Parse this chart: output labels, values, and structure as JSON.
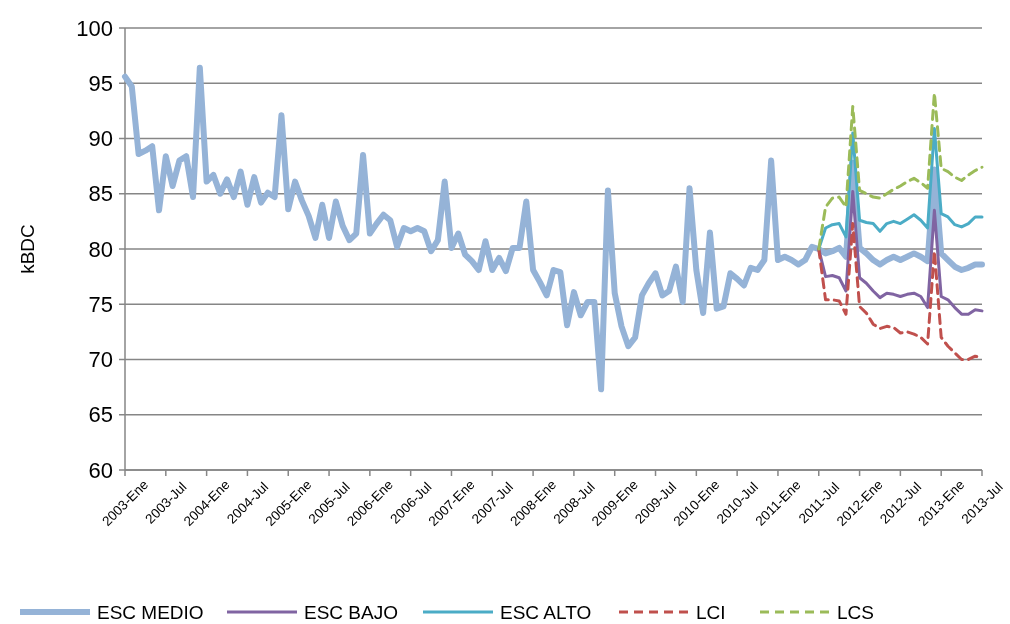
{
  "chart_data": {
    "type": "line",
    "ylabel": "kBDC",
    "categories": [
      "2003-Ene",
      null,
      null,
      null,
      null,
      null,
      "2003-Jul",
      null,
      null,
      null,
      null,
      null,
      "2004-Ene",
      null,
      null,
      null,
      null,
      null,
      "2004-Jul",
      null,
      null,
      null,
      null,
      null,
      "2005-Ene",
      null,
      null,
      null,
      null,
      null,
      "2005-Jul",
      null,
      null,
      null,
      null,
      null,
      "2006-Ene",
      null,
      null,
      null,
      null,
      null,
      "2006-Jul",
      null,
      null,
      null,
      null,
      null,
      "2007-Ene",
      null,
      null,
      null,
      null,
      null,
      "2007-Jul",
      null,
      null,
      null,
      null,
      null,
      "2008-Ene",
      null,
      null,
      null,
      null,
      null,
      "2008-Jul",
      null,
      null,
      null,
      null,
      null,
      "2009-Ene",
      null,
      null,
      null,
      null,
      null,
      "2009-Jul",
      null,
      null,
      null,
      null,
      null,
      "2010-Ene",
      null,
      null,
      null,
      null,
      null,
      "2010-Jul",
      null,
      null,
      null,
      null,
      null,
      "2011-Ene",
      null,
      null,
      null,
      null,
      null,
      "2011-Jul",
      null,
      null,
      null,
      null,
      null,
      "2012-Ene",
      null,
      null,
      null,
      null,
      null,
      "2012-Jul",
      null,
      null,
      null,
      null,
      null,
      "2013-Ene",
      null,
      null,
      null,
      null,
      null,
      "2013-Jul"
    ],
    "ylim": [
      60,
      100
    ],
    "yticks": [
      60,
      65,
      70,
      75,
      80,
      85,
      90,
      95,
      100
    ],
    "grid": "y",
    "legend": "bottom",
    "marker": "none",
    "series": [
      {
        "name": "ESC MEDIO",
        "color": "#95b3d7",
        "line_style": "solid",
        "values": [
          95.6,
          94.7,
          88.6,
          88.9,
          89.3,
          83.5,
          88.4,
          85.7,
          88.0,
          88.4,
          84.7,
          96.4,
          86.1,
          86.7,
          85.0,
          86.3,
          84.7,
          87.0,
          84.0,
          86.5,
          84.2,
          85.1,
          84.7,
          92.1,
          83.6,
          86.1,
          84.4,
          83.0,
          81.0,
          84.0,
          81.0,
          84.3,
          82.1,
          80.8,
          81.4,
          88.5,
          81.4,
          82.3,
          83.1,
          82.6,
          80.2,
          81.9,
          81.6,
          81.9,
          81.6,
          79.8,
          80.8,
          86.1,
          80.1,
          81.4,
          79.5,
          78.9,
          78.1,
          80.7,
          78.1,
          79.2,
          78.0,
          80.1,
          80.1,
          84.3,
          78.1,
          77.0,
          75.8,
          78.1,
          77.9,
          73.1,
          76.1,
          74.0,
          75.2,
          75.2,
          67.3,
          85.3,
          76.0,
          73.0,
          71.2,
          72.0,
          75.8,
          76.9,
          77.8,
          75.8,
          76.2,
          78.4,
          75.2,
          85.5,
          78.1,
          74.2,
          81.5,
          74.6,
          74.8,
          77.8,
          77.3,
          76.7,
          78.3,
          78.1,
          79.0,
          88.0,
          79.0,
          79.3,
          79.0,
          78.6,
          79.0,
          80.2,
          80.0,
          79.6,
          79.8,
          80.1,
          79.3,
          87.8,
          80.1,
          79.6,
          79.0,
          78.6,
          79.0,
          79.3,
          79.0,
          79.3,
          79.6,
          79.3,
          78.9,
          87.2,
          79.6,
          79.0,
          78.4,
          78.1,
          78.3,
          78.6,
          78.6
        ]
      },
      {
        "name": "ESC BAJO",
        "color": "#8064a2",
        "line_style": "solid",
        "values": [
          null,
          null,
          null,
          null,
          null,
          null,
          null,
          null,
          null,
          null,
          null,
          null,
          null,
          null,
          null,
          null,
          null,
          null,
          null,
          null,
          null,
          null,
          null,
          null,
          null,
          null,
          null,
          null,
          null,
          null,
          null,
          null,
          null,
          null,
          null,
          null,
          null,
          null,
          null,
          null,
          null,
          null,
          null,
          null,
          null,
          null,
          null,
          null,
          null,
          null,
          null,
          null,
          null,
          null,
          null,
          null,
          null,
          null,
          null,
          null,
          null,
          null,
          null,
          null,
          null,
          null,
          null,
          null,
          null,
          null,
          null,
          null,
          null,
          null,
          null,
          null,
          null,
          null,
          null,
          null,
          null,
          null,
          null,
          null,
          null,
          null,
          null,
          null,
          null,
          null,
          null,
          null,
          null,
          null,
          null,
          null,
          null,
          null,
          null,
          null,
          null,
          null,
          80.0,
          77.5,
          77.6,
          77.4,
          76.2,
          85.2,
          77.4,
          76.9,
          76.2,
          75.6,
          76.0,
          75.9,
          75.7,
          75.9,
          76.0,
          75.7,
          74.7,
          83.5,
          75.7,
          75.4,
          74.7,
          74.1,
          74.1,
          74.5,
          74.4
        ]
      },
      {
        "name": "ESC ALTO",
        "color": "#4bacc6",
        "line_style": "solid",
        "values": [
          null,
          null,
          null,
          null,
          null,
          null,
          null,
          null,
          null,
          null,
          null,
          null,
          null,
          null,
          null,
          null,
          null,
          null,
          null,
          null,
          null,
          null,
          null,
          null,
          null,
          null,
          null,
          null,
          null,
          null,
          null,
          null,
          null,
          null,
          null,
          null,
          null,
          null,
          null,
          null,
          null,
          null,
          null,
          null,
          null,
          null,
          null,
          null,
          null,
          null,
          null,
          null,
          null,
          null,
          null,
          null,
          null,
          null,
          null,
          null,
          null,
          null,
          null,
          null,
          null,
          null,
          null,
          null,
          null,
          null,
          null,
          null,
          null,
          null,
          null,
          null,
          null,
          null,
          null,
          null,
          null,
          null,
          null,
          null,
          null,
          null,
          null,
          null,
          null,
          null,
          null,
          null,
          null,
          null,
          null,
          null,
          null,
          null,
          null,
          null,
          null,
          null,
          80.0,
          81.9,
          82.2,
          82.3,
          81.1,
          90.5,
          82.6,
          82.4,
          82.3,
          81.6,
          82.3,
          82.5,
          82.3,
          82.7,
          83.1,
          82.6,
          81.9,
          90.9,
          83.2,
          82.9,
          82.2,
          82.0,
          82.3,
          82.9,
          82.9
        ]
      },
      {
        "name": "LCI",
        "color": "#c0504d",
        "line_style": "dashed",
        "values": [
          null,
          null,
          null,
          null,
          null,
          null,
          null,
          null,
          null,
          null,
          null,
          null,
          null,
          null,
          null,
          null,
          null,
          null,
          null,
          null,
          null,
          null,
          null,
          null,
          null,
          null,
          null,
          null,
          null,
          null,
          null,
          null,
          null,
          null,
          null,
          null,
          null,
          null,
          null,
          null,
          null,
          null,
          null,
          null,
          null,
          null,
          null,
          null,
          null,
          null,
          null,
          null,
          null,
          null,
          null,
          null,
          null,
          null,
          null,
          null,
          null,
          null,
          null,
          null,
          null,
          null,
          null,
          null,
          null,
          null,
          null,
          null,
          null,
          null,
          null,
          null,
          null,
          null,
          null,
          null,
          null,
          null,
          null,
          null,
          null,
          null,
          null,
          null,
          null,
          null,
          null,
          null,
          null,
          null,
          null,
          null,
          null,
          null,
          null,
          null,
          null,
          null,
          80.0,
          75.4,
          75.4,
          75.3,
          74.1,
          82.3,
          74.8,
          74.2,
          73.2,
          72.8,
          73.0,
          72.9,
          72.4,
          72.5,
          72.3,
          72.0,
          71.4,
          79.8,
          72.0,
          71.2,
          70.6,
          70.0,
          70.0,
          70.3,
          70.2
        ]
      },
      {
        "name": "LCS",
        "color": "#9bbb59",
        "line_style": "dashed",
        "values": [
          null,
          null,
          null,
          null,
          null,
          null,
          null,
          null,
          null,
          null,
          null,
          null,
          null,
          null,
          null,
          null,
          null,
          null,
          null,
          null,
          null,
          null,
          null,
          null,
          null,
          null,
          null,
          null,
          null,
          null,
          null,
          null,
          null,
          null,
          null,
          null,
          null,
          null,
          null,
          null,
          null,
          null,
          null,
          null,
          null,
          null,
          null,
          null,
          null,
          null,
          null,
          null,
          null,
          null,
          null,
          null,
          null,
          null,
          null,
          null,
          null,
          null,
          null,
          null,
          null,
          null,
          null,
          null,
          null,
          null,
          null,
          null,
          null,
          null,
          null,
          null,
          null,
          null,
          null,
          null,
          null,
          null,
          null,
          null,
          null,
          null,
          null,
          null,
          null,
          null,
          null,
          null,
          null,
          null,
          null,
          null,
          null,
          null,
          null,
          null,
          null,
          null,
          80.0,
          83.8,
          84.6,
          84.7,
          83.8,
          92.9,
          85.3,
          85.0,
          84.7,
          84.6,
          85.0,
          85.4,
          85.7,
          86.1,
          86.4,
          86.0,
          85.5,
          94.1,
          87.3,
          87.0,
          86.5,
          86.2,
          86.7,
          87.1,
          87.4
        ]
      }
    ]
  }
}
